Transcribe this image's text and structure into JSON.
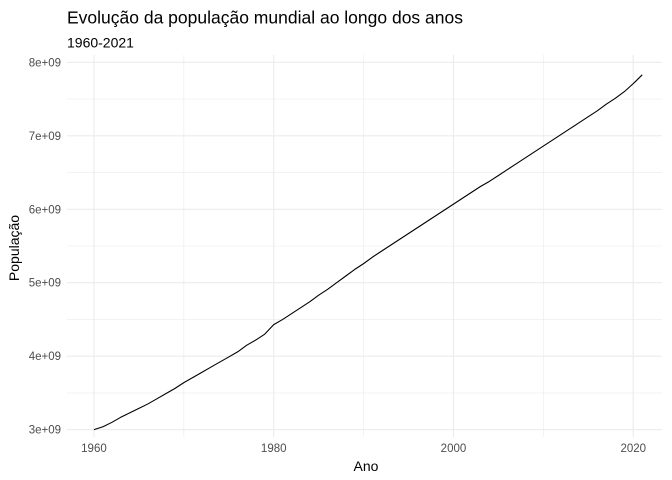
{
  "chart_data": {
    "type": "line",
    "title": "Evolução da população mundial ao longo dos anos",
    "subtitle": "1960-2021",
    "xlabel": "Ano",
    "ylabel": "População",
    "xlim": [
      1957,
      2023.2
    ],
    "ylim": [
      2900000000.0,
      8100000000.0
    ],
    "grid": true,
    "x_major_ticks": [
      1960,
      1980,
      2000,
      2020
    ],
    "x_minor_ticks": [
      1970,
      1990,
      2010
    ],
    "y_major_ticks": [
      3000000000.0,
      4000000000.0,
      5000000000.0,
      6000000000.0,
      7000000000.0,
      8000000000.0
    ],
    "y_minor_ticks": [
      3500000000.0,
      4500000000.0,
      5500000000.0,
      6500000000.0,
      7500000000.0
    ],
    "x_tick_labels": [
      "1960",
      "1980",
      "2000",
      "2020"
    ],
    "y_tick_labels": [
      "3e+09",
      "4e+09",
      "5e+09",
      "6e+09",
      "7e+09",
      "8e+09"
    ],
    "series": [
      {
        "color": "#000000",
        "x": [
          1960,
          1961,
          1962,
          1963,
          1964,
          1965,
          1966,
          1967,
          1968,
          1969,
          1970,
          1971,
          1972,
          1973,
          1974,
          1975,
          1976,
          1977,
          1978,
          1979,
          1980,
          1981,
          1982,
          1983,
          1984,
          1985,
          1986,
          1987,
          1988,
          1989,
          1990,
          1991,
          1992,
          1993,
          1994,
          1995,
          1996,
          1997,
          1998,
          1999,
          2000,
          2001,
          2002,
          2003,
          2004,
          2005,
          2006,
          2007,
          2008,
          2009,
          2010,
          2011,
          2012,
          2013,
          2014,
          2015,
          2016,
          2017,
          2018,
          2019,
          2020,
          2021
        ],
        "y": [
          3000000000.0,
          3040000000.0,
          3100000000.0,
          3170000000.0,
          3230000000.0,
          3290000000.0,
          3350000000.0,
          3420000000.0,
          3490000000.0,
          3560000000.0,
          3640000000.0,
          3710000000.0,
          3780000000.0,
          3850000000.0,
          3920000000.0,
          3990000000.0,
          4060000000.0,
          4150000000.0,
          4220000000.0,
          4300000000.0,
          4430000000.0,
          4500000000.0,
          4580000000.0,
          4660000000.0,
          4740000000.0,
          4830000000.0,
          4910000000.0,
          5000000000.0,
          5090000000.0,
          5180000000.0,
          5260000000.0,
          5350000000.0,
          5430000000.0,
          5510000000.0,
          5590000000.0,
          5670000000.0,
          5750000000.0,
          5830000000.0,
          5910000000.0,
          5990000000.0,
          6070000000.0,
          6150000000.0,
          6230000000.0,
          6310000000.0,
          6380000000.0,
          6460000000.0,
          6540000000.0,
          6620000000.0,
          6700000000.0,
          6780000000.0,
          6860000000.0,
          6940000000.0,
          7020000000.0,
          7100000000.0,
          7180000000.0,
          7260000000.0,
          7340000000.0,
          7430000000.0,
          7510000000.0,
          7600000000.0,
          7710000000.0,
          7830000000.0
        ]
      }
    ]
  }
}
